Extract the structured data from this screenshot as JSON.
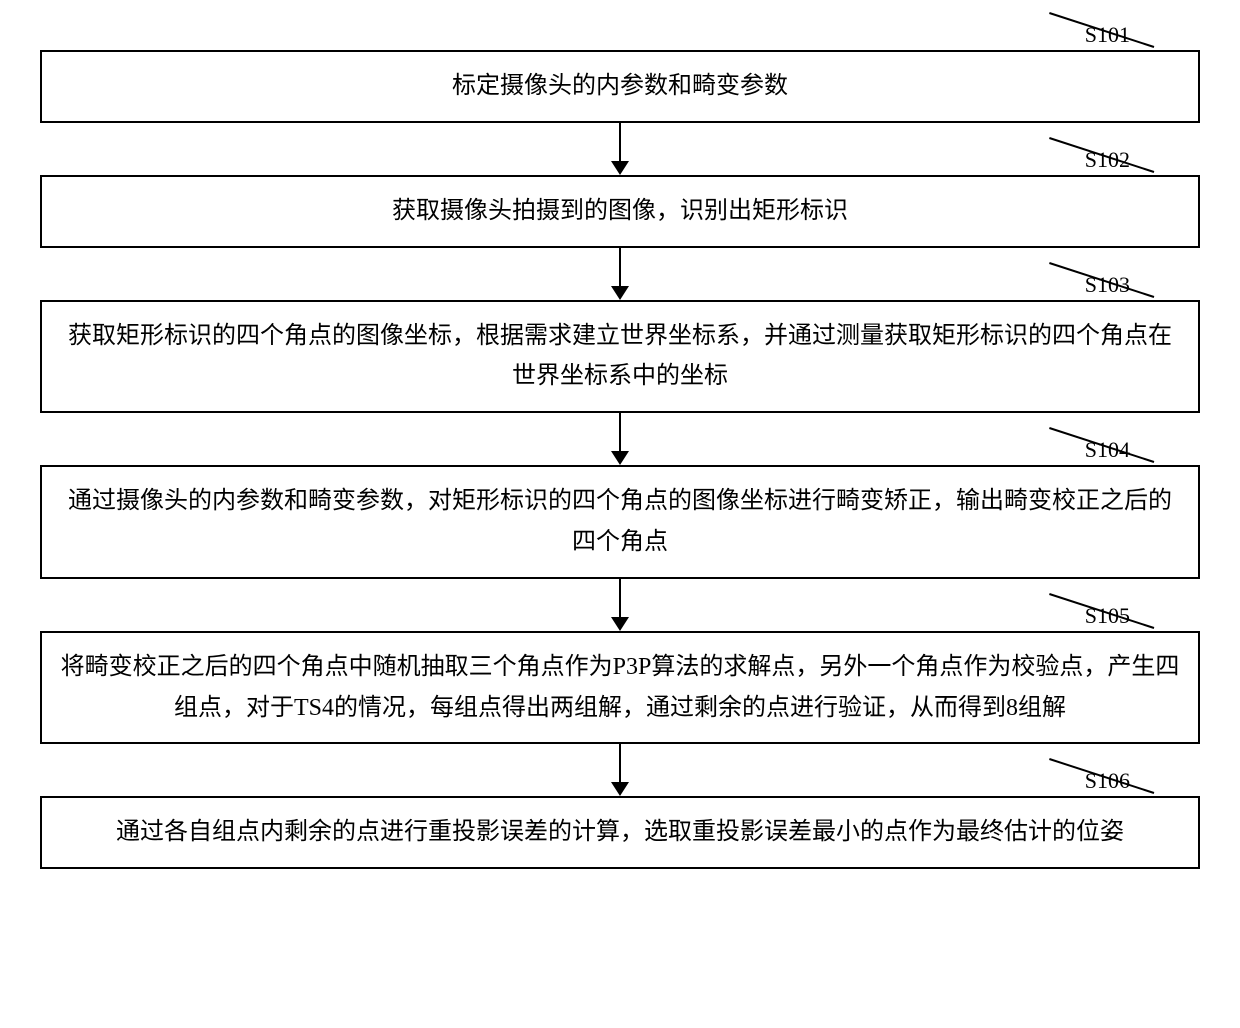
{
  "flowchart": {
    "type": "flowchart",
    "direction": "vertical",
    "box_border_color": "#000000",
    "box_border_width": 2,
    "box_background": "#ffffff",
    "text_color": "#000000",
    "font_size_box": 24,
    "font_size_label": 22,
    "arrow_color": "#000000",
    "arrow_line_width": 2,
    "arrow_head_size": 14,
    "steps": [
      {
        "id": "S101",
        "text": "标定摄像头的内参数和畸变参数"
      },
      {
        "id": "S102",
        "text": "获取摄像头拍摄到的图像，识别出矩形标识"
      },
      {
        "id": "S103",
        "text": "获取矩形标识的四个角点的图像坐标，根据需求建立世界坐标系，并通过测量获取矩形标识的四个角点在世界坐标系中的坐标"
      },
      {
        "id": "S104",
        "text": "通过摄像头的内参数和畸变参数，对矩形标识的四个角点的图像坐标进行畸变矫正，输出畸变校正之后的四个角点"
      },
      {
        "id": "S105",
        "text": "将畸变校正之后的四个角点中随机抽取三个角点作为P3P算法的求解点，另外一个角点作为校验点，产生四组点，对于TS4的情况，每组点得出两组解，通过剩余的点进行验证，从而得到8组解"
      },
      {
        "id": "S106",
        "text": "通过各自组点内剩余的点进行重投影误差的计算，选取重投影误差最小的点作为最终估计的位姿"
      }
    ]
  }
}
